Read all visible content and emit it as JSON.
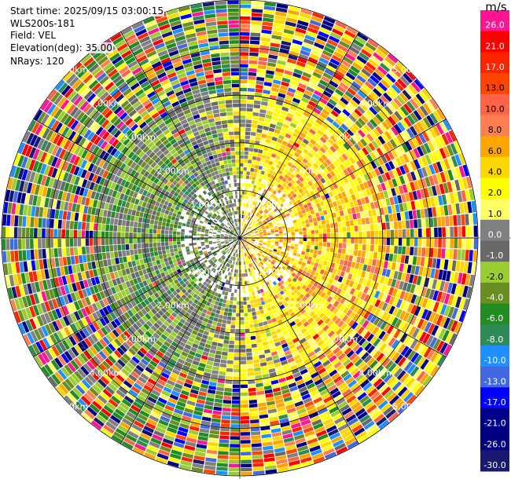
{
  "header": {
    "start_time": "Start time: 2025/09/15 03:00:15",
    "site": "WLS200s-181",
    "field": "Field: VEL",
    "elevation": "Elevation(deg): 35.00",
    "nrays": "NRays: 120"
  },
  "colorbar": {
    "unit": "m/s",
    "levels": [
      {
        "label": "26.0",
        "color": "#ff1493"
      },
      {
        "label": "21.0",
        "color": "#ff0000"
      },
      {
        "label": "17.0",
        "color": "#ff2400"
      },
      {
        "label": "13.0",
        "color": "#ff4500"
      },
      {
        "label": "10.0",
        "color": "#ff6347"
      },
      {
        "label": "8.0",
        "color": "#ff7f50"
      },
      {
        "label": "6.0",
        "color": "#ffa500"
      },
      {
        "label": "4.0",
        "color": "#ffd700"
      },
      {
        "label": "2.0",
        "color": "#ffff00"
      },
      {
        "label": "1.0",
        "color": "#ffff66"
      },
      {
        "label": "0.0",
        "color": "#808080"
      },
      {
        "label": "-1.0",
        "color": "#696969"
      },
      {
        "label": "-2.0",
        "color": "#9acd32"
      },
      {
        "label": "-4.0",
        "color": "#6b8e23"
      },
      {
        "label": "-6.0",
        "color": "#228b22"
      },
      {
        "label": "-8.0",
        "color": "#2e8b57"
      },
      {
        "label": "-10.0",
        "color": "#1e90ff"
      },
      {
        "label": "-13.0",
        "color": "#4169e1"
      },
      {
        "label": "-17.0",
        "color": "#0000ff"
      },
      {
        "label": "-21.0",
        "color": "#00008b"
      },
      {
        "label": "-26.0",
        "color": "#000080"
      },
      {
        "label": "-30.0",
        "color": "#191970"
      }
    ]
  },
  "chart_data": {
    "type": "heatmap",
    "projection": "polar PPI",
    "field": "VEL",
    "units": "m/s",
    "nrays": 120,
    "max_range_km": 5.0,
    "range_rings_km": [
      1.0,
      2.0,
      3.0,
      4.0,
      5.0
    ],
    "ring_labels": [
      "1.00km",
      "2.00km",
      "3.00km",
      "4.00km",
      "5.00km"
    ],
    "spokes_deg": [
      0,
      30,
      60,
      90,
      120,
      150,
      180,
      210,
      240,
      270,
      300,
      330
    ],
    "pattern": "dipole: positive velocities (yellow/orange) to the east, negative velocities (green/grey) to the west within ~3 km; noisy multicolor returns beyond",
    "seed": 181
  }
}
